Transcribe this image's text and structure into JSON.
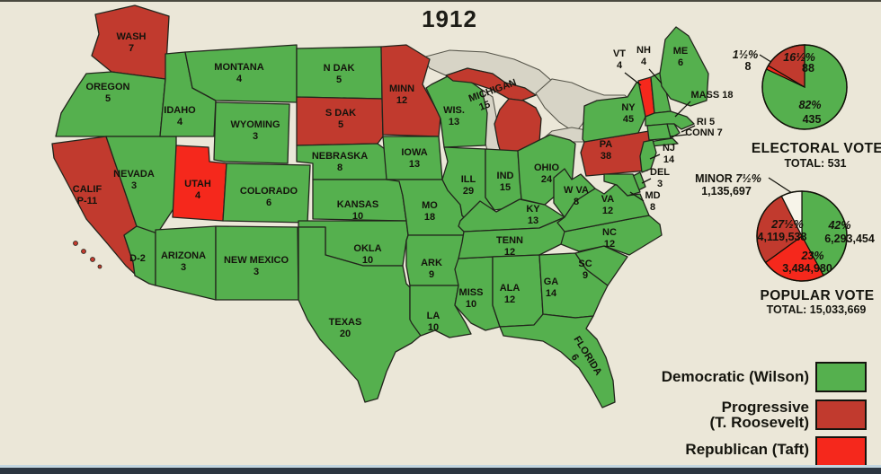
{
  "title": "1912",
  "colors": {
    "democratic": "#55b04e",
    "progressive": "#c13a2e",
    "republican": "#f5281c",
    "minor": "#f7f4e9",
    "background": "#ebe7d8",
    "lake": "#d7d4c6",
    "border": "#22251c"
  },
  "electoral_vote": {
    "heading": "ELECTORAL VOTE",
    "total_label": "TOTAL: 531",
    "slices": [
      {
        "party": "democratic",
        "pct": 82,
        "pct_label": "82%",
        "votes_label": "435"
      },
      {
        "party": "republican",
        "pct": 1.5,
        "pct_label": "1½%",
        "votes_label": "8"
      },
      {
        "party": "progressive",
        "pct": 16.5,
        "pct_label": "16½%",
        "votes_label": "88"
      }
    ]
  },
  "popular_vote": {
    "heading": "POPULAR VOTE",
    "total_label": "TOTAL: 15,033,669",
    "slices": [
      {
        "party": "democratic",
        "pct": 42,
        "pct_label": "42%",
        "votes_label": "6,293,454"
      },
      {
        "party": "republican",
        "pct": 23,
        "pct_label": "23%",
        "votes_label": "3,484,980"
      },
      {
        "party": "progressive",
        "pct": 27.5,
        "pct_label": "27½%",
        "votes_label": "4,119,538"
      },
      {
        "party": "minor",
        "pct": 7.5,
        "pct_label": "7½%",
        "name_label": "MINOR",
        "votes_label": "1,135,697"
      }
    ]
  },
  "legend": {
    "items": [
      {
        "party": "democratic",
        "lines": [
          "Democratic (Wilson)"
        ]
      },
      {
        "party": "progressive",
        "lines": [
          "Progressive",
          "(T. Roosevelt)"
        ]
      },
      {
        "party": "republican",
        "lines": [
          "Republican (Taft)"
        ]
      }
    ]
  },
  "states": [
    {
      "id": "wash",
      "lines": [
        "WASH",
        "7"
      ],
      "votes": 7,
      "party": "progressive"
    },
    {
      "id": "oregon",
      "lines": [
        "OREGON",
        "5"
      ],
      "votes": 5,
      "party": "democratic"
    },
    {
      "id": "calif",
      "lines": [
        "CALIF",
        "P-11"
      ],
      "votes": 11,
      "party": "progressive"
    },
    {
      "id": "calif-d2",
      "lines": [
        "D-2"
      ],
      "votes": 2,
      "party": "democratic"
    },
    {
      "id": "nevada",
      "lines": [
        "NEVADA",
        "3"
      ],
      "votes": 3,
      "party": "democratic"
    },
    {
      "id": "idaho",
      "lines": [
        "IDAHO",
        "4"
      ],
      "votes": 4,
      "party": "democratic"
    },
    {
      "id": "montana",
      "lines": [
        "MONTANA",
        "4"
      ],
      "votes": 4,
      "party": "democratic"
    },
    {
      "id": "wyoming",
      "lines": [
        "WYOMING",
        "3"
      ],
      "votes": 3,
      "party": "democratic"
    },
    {
      "id": "utah",
      "lines": [
        "UTAH",
        "4"
      ],
      "votes": 4,
      "party": "republican"
    },
    {
      "id": "colorado",
      "lines": [
        "COLORADO",
        "6"
      ],
      "votes": 6,
      "party": "democratic"
    },
    {
      "id": "arizona",
      "lines": [
        "ARIZONA",
        "3"
      ],
      "votes": 3,
      "party": "democratic"
    },
    {
      "id": "new-mexico",
      "lines": [
        "NEW MEXICO",
        "3"
      ],
      "votes": 3,
      "party": "democratic"
    },
    {
      "id": "n-dak",
      "lines": [
        "N DAK",
        "5"
      ],
      "votes": 5,
      "party": "democratic"
    },
    {
      "id": "s-dak",
      "lines": [
        "S DAK",
        "5"
      ],
      "votes": 5,
      "party": "progressive"
    },
    {
      "id": "nebraska",
      "lines": [
        "NEBRASKA",
        "8"
      ],
      "votes": 8,
      "party": "democratic"
    },
    {
      "id": "kansas",
      "lines": [
        "KANSAS",
        "10"
      ],
      "votes": 10,
      "party": "democratic"
    },
    {
      "id": "okla",
      "lines": [
        "OKLA",
        "10"
      ],
      "votes": 10,
      "party": "democratic"
    },
    {
      "id": "texas",
      "lines": [
        "TEXAS",
        "20"
      ],
      "votes": 20,
      "party": "democratic"
    },
    {
      "id": "minn",
      "lines": [
        "MINN",
        "12"
      ],
      "votes": 12,
      "party": "progressive"
    },
    {
      "id": "iowa",
      "lines": [
        "IOWA",
        "13"
      ],
      "votes": 13,
      "party": "democratic"
    },
    {
      "id": "mo",
      "lines": [
        "MO",
        "18"
      ],
      "votes": 18,
      "party": "democratic"
    },
    {
      "id": "ark",
      "lines": [
        "ARK",
        "9"
      ],
      "votes": 9,
      "party": "democratic"
    },
    {
      "id": "la",
      "lines": [
        "LA",
        "10"
      ],
      "votes": 10,
      "party": "democratic"
    },
    {
      "id": "wis",
      "lines": [
        "WIS.",
        "13"
      ],
      "votes": 13,
      "party": "democratic"
    },
    {
      "id": "ill",
      "lines": [
        "ILL",
        "29"
      ],
      "votes": 29,
      "party": "democratic"
    },
    {
      "id": "miss",
      "lines": [
        "MISS",
        "10"
      ],
      "votes": 10,
      "party": "democratic"
    },
    {
      "id": "michigan",
      "lines": [
        "MICHIGAN",
        "15"
      ],
      "votes": 15,
      "party": "progressive"
    },
    {
      "id": "ind",
      "lines": [
        "IND",
        "15"
      ],
      "votes": 15,
      "party": "democratic"
    },
    {
      "id": "ky",
      "lines": [
        "KY",
        "13"
      ],
      "votes": 13,
      "party": "democratic"
    },
    {
      "id": "tenn",
      "lines": [
        "TENN",
        "12"
      ],
      "votes": 12,
      "party": "democratic"
    },
    {
      "id": "ala",
      "lines": [
        "ALA",
        "12"
      ],
      "votes": 12,
      "party": "democratic"
    },
    {
      "id": "ohio",
      "lines": [
        "OHIO",
        "24"
      ],
      "votes": 24,
      "party": "democratic"
    },
    {
      "id": "ga",
      "lines": [
        "GA",
        "14"
      ],
      "votes": 14,
      "party": "democratic"
    },
    {
      "id": "w-va",
      "lines": [
        "W VA",
        "8"
      ],
      "votes": 8,
      "party": "democratic"
    },
    {
      "id": "sc",
      "lines": [
        "SC",
        "9"
      ],
      "votes": 9,
      "party": "democratic"
    },
    {
      "id": "florida",
      "lines": [
        "FLORIDA",
        "6"
      ],
      "votes": 6,
      "party": "democratic"
    },
    {
      "id": "nc",
      "lines": [
        "NC",
        "12"
      ],
      "votes": 12,
      "party": "democratic"
    },
    {
      "id": "va",
      "lines": [
        "VA",
        "12"
      ],
      "votes": 12,
      "party": "democratic"
    },
    {
      "id": "pa",
      "lines": [
        "PA",
        "38"
      ],
      "votes": 38,
      "party": "progressive"
    },
    {
      "id": "ny",
      "lines": [
        "NY",
        "45"
      ],
      "votes": 45,
      "party": "democratic"
    },
    {
      "id": "vt",
      "lines": [
        "VT",
        "4"
      ],
      "votes": 4,
      "party": "republican"
    },
    {
      "id": "nh",
      "lines": [
        "NH",
        "4"
      ],
      "votes": 4,
      "party": "democratic"
    },
    {
      "id": "me",
      "lines": [
        "ME",
        "6"
      ],
      "votes": 6,
      "party": "democratic"
    },
    {
      "id": "mass",
      "lines": [
        "MASS 18"
      ],
      "votes": 18,
      "party": "democratic"
    },
    {
      "id": "ri",
      "lines": [
        "RI 5"
      ],
      "votes": 5,
      "party": "democratic"
    },
    {
      "id": "conn",
      "lines": [
        "CONN 7"
      ],
      "votes": 7,
      "party": "democratic"
    },
    {
      "id": "nj",
      "lines": [
        "NJ",
        "14"
      ],
      "votes": 14,
      "party": "democratic"
    },
    {
      "id": "del",
      "lines": [
        "DEL",
        "3"
      ],
      "votes": 3,
      "party": "democratic"
    },
    {
      "id": "md",
      "lines": [
        "MD",
        "8"
      ],
      "votes": 8,
      "party": "democratic"
    }
  ],
  "chart_data": [
    {
      "type": "pie",
      "title": "ELECTORAL VOTE",
      "total": 531,
      "legend_position": "below",
      "slices": [
        {
          "label": "Democratic (Wilson)",
          "pct": 82,
          "value": 435
        },
        {
          "label": "Republican (Taft)",
          "pct": 1.5,
          "value": 8
        },
        {
          "label": "Progressive (T. Roosevelt)",
          "pct": 16.5,
          "value": 88
        }
      ]
    },
    {
      "type": "pie",
      "title": "POPULAR VOTE",
      "total": 15033669,
      "legend_position": "below",
      "slices": [
        {
          "label": "Democratic (Wilson)",
          "pct": 42,
          "value": 6293454
        },
        {
          "label": "Republican (Taft)",
          "pct": 23,
          "value": 3484980
        },
        {
          "label": "Progressive (T. Roosevelt)",
          "pct": 27.5,
          "value": 4119538
        },
        {
          "label": "Minor",
          "pct": 7.5,
          "value": 1135697
        }
      ]
    }
  ]
}
